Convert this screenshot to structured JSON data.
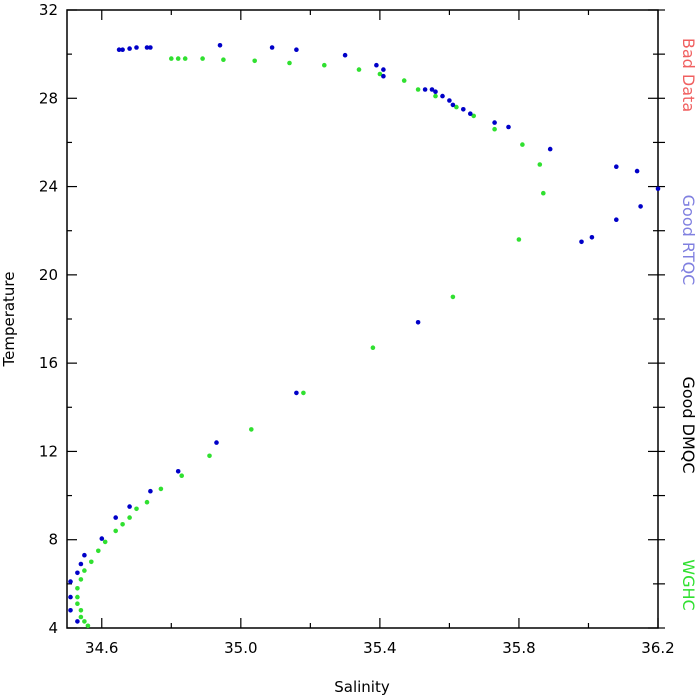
{
  "chart_data": {
    "type": "scatter",
    "xlabel": "Salinity",
    "ylabel": "Temperature",
    "xlim": [
      34.5,
      36.2
    ],
    "ylim": [
      4,
      32
    ],
    "xticks": [
      34.6,
      35.0,
      35.4,
      35.8,
      36.2
    ],
    "xtick_labels": [
      "34.6",
      "35.0",
      "35.4",
      "35.8",
      "36.2"
    ],
    "yticks": [
      4,
      8,
      12,
      16,
      20,
      24,
      28,
      32
    ],
    "ytick_labels": [
      "4",
      "8",
      "12",
      "16",
      "20",
      "24",
      "28",
      "32"
    ],
    "grid": false,
    "legend_position": "right",
    "legend": [
      {
        "name": "Bad Data",
        "color": "#f06060"
      },
      {
        "name": "Good RTQC",
        "color": "#8080e0"
      },
      {
        "name": "Good DMQC",
        "color": "#000000"
      },
      {
        "name": "WGHC",
        "color": "#30e030"
      }
    ],
    "series": [
      {
        "name": "Good RTQC",
        "color": "#0000c8",
        "points": [
          [
            34.65,
            30.2
          ],
          [
            34.66,
            30.2
          ],
          [
            34.68,
            30.25
          ],
          [
            34.7,
            30.3
          ],
          [
            34.73,
            30.3
          ],
          [
            34.74,
            30.3
          ],
          [
            34.94,
            30.4
          ],
          [
            35.09,
            30.3
          ],
          [
            35.16,
            30.2
          ],
          [
            35.3,
            29.95
          ],
          [
            35.39,
            29.5
          ],
          [
            35.41,
            29.3
          ],
          [
            35.41,
            29.0
          ],
          [
            35.53,
            28.4
          ],
          [
            35.55,
            28.4
          ],
          [
            35.56,
            28.3
          ],
          [
            35.58,
            28.1
          ],
          [
            35.6,
            27.9
          ],
          [
            35.61,
            27.7
          ],
          [
            35.64,
            27.5
          ],
          [
            35.66,
            27.3
          ],
          [
            35.73,
            26.9
          ],
          [
            35.77,
            26.7
          ],
          [
            35.89,
            25.7
          ],
          [
            36.08,
            24.9
          ],
          [
            36.14,
            24.7
          ],
          [
            36.2,
            23.9
          ],
          [
            36.15,
            23.1
          ],
          [
            36.08,
            22.5
          ],
          [
            36.01,
            21.7
          ],
          [
            35.98,
            21.5
          ],
          [
            35.51,
            17.85
          ],
          [
            35.16,
            14.65
          ],
          [
            34.93,
            12.4
          ],
          [
            34.82,
            11.1
          ],
          [
            34.74,
            10.2
          ],
          [
            34.68,
            9.5
          ],
          [
            34.64,
            9.0
          ],
          [
            34.6,
            8.05
          ],
          [
            34.55,
            7.3
          ],
          [
            34.54,
            6.9
          ],
          [
            34.53,
            6.5
          ],
          [
            34.51,
            6.1
          ],
          [
            34.51,
            5.4
          ],
          [
            34.51,
            4.8
          ],
          [
            34.53,
            4.3
          ]
        ]
      },
      {
        "name": "WGHC",
        "color": "#30e030",
        "points": [
          [
            34.8,
            29.8
          ],
          [
            34.82,
            29.8
          ],
          [
            34.84,
            29.8
          ],
          [
            34.89,
            29.8
          ],
          [
            34.95,
            29.75
          ],
          [
            35.04,
            29.7
          ],
          [
            35.14,
            29.6
          ],
          [
            35.24,
            29.5
          ],
          [
            35.34,
            29.3
          ],
          [
            35.4,
            29.1
          ],
          [
            35.47,
            28.8
          ],
          [
            35.51,
            28.4
          ],
          [
            35.56,
            28.1
          ],
          [
            35.62,
            27.6
          ],
          [
            35.67,
            27.2
          ],
          [
            35.73,
            26.6
          ],
          [
            35.81,
            25.9
          ],
          [
            35.86,
            25.0
          ],
          [
            35.87,
            23.7
          ],
          [
            35.8,
            21.6
          ],
          [
            35.61,
            19.0
          ],
          [
            35.38,
            16.7
          ],
          [
            35.18,
            14.65
          ],
          [
            35.03,
            13.0
          ],
          [
            34.91,
            11.8
          ],
          [
            34.83,
            10.9
          ],
          [
            34.77,
            10.3
          ],
          [
            34.73,
            9.7
          ],
          [
            34.7,
            9.4
          ],
          [
            34.68,
            9.0
          ],
          [
            34.66,
            8.7
          ],
          [
            34.64,
            8.4
          ],
          [
            34.61,
            7.9
          ],
          [
            34.59,
            7.5
          ],
          [
            34.57,
            7.0
          ],
          [
            34.55,
            6.6
          ],
          [
            34.54,
            6.2
          ],
          [
            34.53,
            5.8
          ],
          [
            34.53,
            5.4
          ],
          [
            34.53,
            5.1
          ],
          [
            34.54,
            4.8
          ],
          [
            34.54,
            4.5
          ],
          [
            34.55,
            4.3
          ],
          [
            34.56,
            4.1
          ]
        ]
      }
    ]
  }
}
